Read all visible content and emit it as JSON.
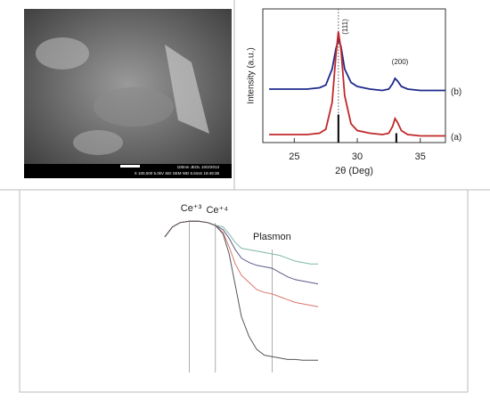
{
  "image": {
    "info_lines": [
      "100nm JEOL 10/2/2013",
      "X 100,000 5.0kV SEI SEM WD 6.5mm 19:49:38"
    ]
  },
  "chart_data": [
    {
      "type": "line",
      "x_label": "2θ (Deg)",
      "y_label": "Intensity (a.u.)",
      "xlim": [
        22.5,
        37
      ],
      "xticks": [
        25,
        30,
        35
      ],
      "ylim": [
        0,
        100
      ],
      "x": [
        23,
        24,
        25,
        26,
        27,
        27.5,
        28,
        28.3,
        28.5,
        28.7,
        29,
        29.5,
        30,
        31,
        32,
        32.5,
        32.8,
        33,
        33.2,
        33.5,
        34,
        35,
        36,
        37
      ],
      "series": [
        {
          "name": "(b)",
          "color": "#1f2a8c",
          "values": [
            40,
            40,
            40,
            40,
            41,
            43,
            55,
            70,
            77,
            72,
            55,
            45,
            42,
            40,
            39,
            40,
            44,
            48,
            46,
            42,
            40,
            39,
            39,
            39
          ]
        },
        {
          "name": "(a)",
          "color": "#c0282a",
          "values": [
            6,
            6,
            6,
            6,
            7,
            10,
            30,
            65,
            83,
            70,
            35,
            14,
            9,
            7,
            6,
            7,
            12,
            18,
            15,
            9,
            6,
            5,
            5,
            5
          ]
        }
      ],
      "sticks": {
        "x": [
          28.5,
          33.1
        ],
        "values": [
          21,
          7
        ]
      },
      "marker_x": 28.5,
      "annotations": [
        "(111)",
        "(200)"
      ]
    },
    {
      "type": "line",
      "xlim": [
        0,
        100
      ],
      "ylim": [
        0,
        100
      ],
      "x": [
        0,
        5,
        10,
        16,
        22,
        28,
        33,
        38,
        42,
        46,
        50,
        55,
        60,
        65,
        70,
        75,
        80,
        85,
        90,
        95,
        100
      ],
      "series": [
        {
          "color": "#7fb8a8",
          "values": [
            87,
            94,
            97,
            98,
            98,
            97,
            95,
            94,
            89,
            83,
            79,
            78,
            77,
            76,
            75,
            74,
            72,
            70,
            69,
            68,
            68
          ]
        },
        {
          "color": "#5a5a8a",
          "values": [
            87,
            94,
            97,
            98,
            98,
            97,
            95,
            92,
            86,
            78,
            72,
            69,
            67,
            66,
            65,
            62,
            59,
            57,
            56,
            55,
            54
          ]
        },
        {
          "color": "#d9756e",
          "values": [
            87,
            94,
            97,
            98,
            98,
            97,
            95,
            90,
            80,
            68,
            60,
            55,
            50,
            48,
            47,
            45,
            43,
            41,
            40,
            39,
            38
          ]
        },
        {
          "color": "#555555",
          "values": [
            87,
            94,
            97,
            98,
            98,
            97,
            95,
            89,
            75,
            53,
            31,
            17,
            8,
            4,
            3,
            2,
            1,
            1,
            0.5,
            0.5,
            0.5
          ]
        }
      ],
      "vlines": [
        16,
        33,
        70
      ],
      "annotations": [
        "Ce⁺³",
        "Ce⁺⁴",
        "Plasmon"
      ]
    }
  ]
}
